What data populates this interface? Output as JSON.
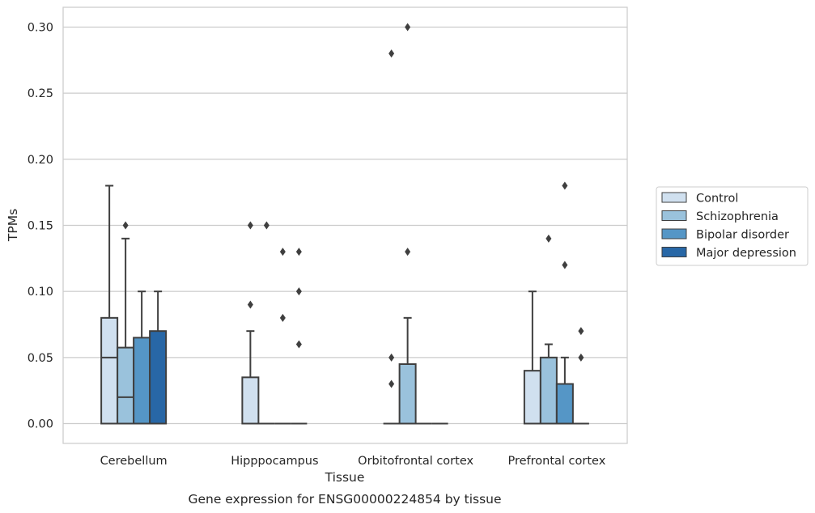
{
  "chart_data": {
    "type": "box",
    "xlabel": "Tissue",
    "ylabel": "TPMs",
    "caption": "Gene expression for ENSG00000224854 by tissue",
    "ylim": [
      -0.015,
      0.315
    ],
    "yticks": [
      0.0,
      0.05,
      0.1,
      0.15,
      0.2,
      0.25,
      0.3
    ],
    "ytick_labels": [
      "0.00",
      "0.05",
      "0.10",
      "0.15",
      "0.20",
      "0.25",
      "0.30"
    ],
    "grid": "horizontal",
    "legend_position": "right",
    "categories": [
      "Cerebellum",
      "Hipppocampus",
      "Orbitofrontal cortex",
      "Prefrontal cortex"
    ],
    "series": [
      {
        "name": "Control",
        "color": "#d0e0ef",
        "boxes": [
          {
            "q1": 0.0,
            "median": 0.05,
            "q3": 0.08,
            "whisker_low": 0.0,
            "whisker_high": 0.18,
            "outliers": []
          },
          {
            "q1": 0.0,
            "median": 0.0,
            "q3": 0.035,
            "whisker_low": 0.0,
            "whisker_high": 0.07,
            "outliers": [
              0.09,
              0.15
            ]
          },
          {
            "q1": 0.0,
            "median": 0.0,
            "q3": 0.0,
            "whisker_low": 0.0,
            "whisker_high": 0.0,
            "outliers": [
              0.03,
              0.05,
              0.28
            ]
          },
          {
            "q1": 0.0,
            "median": 0.0,
            "q3": 0.04,
            "whisker_low": 0.0,
            "whisker_high": 0.1,
            "outliers": []
          }
        ]
      },
      {
        "name": "Schizophrenia",
        "color": "#9ac2dc",
        "boxes": [
          {
            "q1": 0.0,
            "median": 0.02,
            "q3": 0.0575,
            "whisker_low": 0.0,
            "whisker_high": 0.14,
            "outliers": [
              0.15
            ]
          },
          {
            "q1": 0.0,
            "median": 0.0,
            "q3": 0.0,
            "whisker_low": 0.0,
            "whisker_high": 0.0,
            "outliers": [
              0.15
            ]
          },
          {
            "q1": 0.0,
            "median": 0.0,
            "q3": 0.045,
            "whisker_low": 0.0,
            "whisker_high": 0.08,
            "outliers": [
              0.13,
              0.3
            ]
          },
          {
            "q1": 0.0,
            "median": 0.0,
            "q3": 0.05,
            "whisker_low": 0.0,
            "whisker_high": 0.06,
            "outliers": [
              0.14
            ]
          }
        ]
      },
      {
        "name": "Bipolar disorder",
        "color": "#5596c6",
        "boxes": [
          {
            "q1": 0.0,
            "median": 0.0,
            "q3": 0.065,
            "whisker_low": 0.0,
            "whisker_high": 0.1,
            "outliers": []
          },
          {
            "q1": 0.0,
            "median": 0.0,
            "q3": 0.0,
            "whisker_low": 0.0,
            "whisker_high": 0.0,
            "outliers": [
              0.08,
              0.13
            ]
          },
          {
            "q1": 0.0,
            "median": 0.0,
            "q3": 0.0,
            "whisker_low": 0.0,
            "whisker_high": 0.0,
            "outliers": []
          },
          {
            "q1": 0.0,
            "median": 0.0,
            "q3": 0.03,
            "whisker_low": 0.0,
            "whisker_high": 0.05,
            "outliers": [
              0.12,
              0.18
            ]
          }
        ]
      },
      {
        "name": "Major depression",
        "color": "#2867a6",
        "boxes": [
          {
            "q1": 0.0,
            "median": 0.0,
            "q3": 0.07,
            "whisker_low": 0.0,
            "whisker_high": 0.1,
            "outliers": []
          },
          {
            "q1": 0.0,
            "median": 0.0,
            "q3": 0.0,
            "whisker_low": 0.0,
            "whisker_high": 0.0,
            "outliers": [
              0.06,
              0.1,
              0.13
            ]
          },
          {
            "q1": 0.0,
            "median": 0.0,
            "q3": 0.0,
            "whisker_low": 0.0,
            "whisker_high": 0.0,
            "outliers": []
          },
          {
            "q1": 0.0,
            "median": 0.0,
            "q3": 0.0,
            "whisker_low": 0.0,
            "whisker_high": 0.0,
            "outliers": [
              0.05,
              0.07
            ]
          }
        ]
      }
    ]
  }
}
